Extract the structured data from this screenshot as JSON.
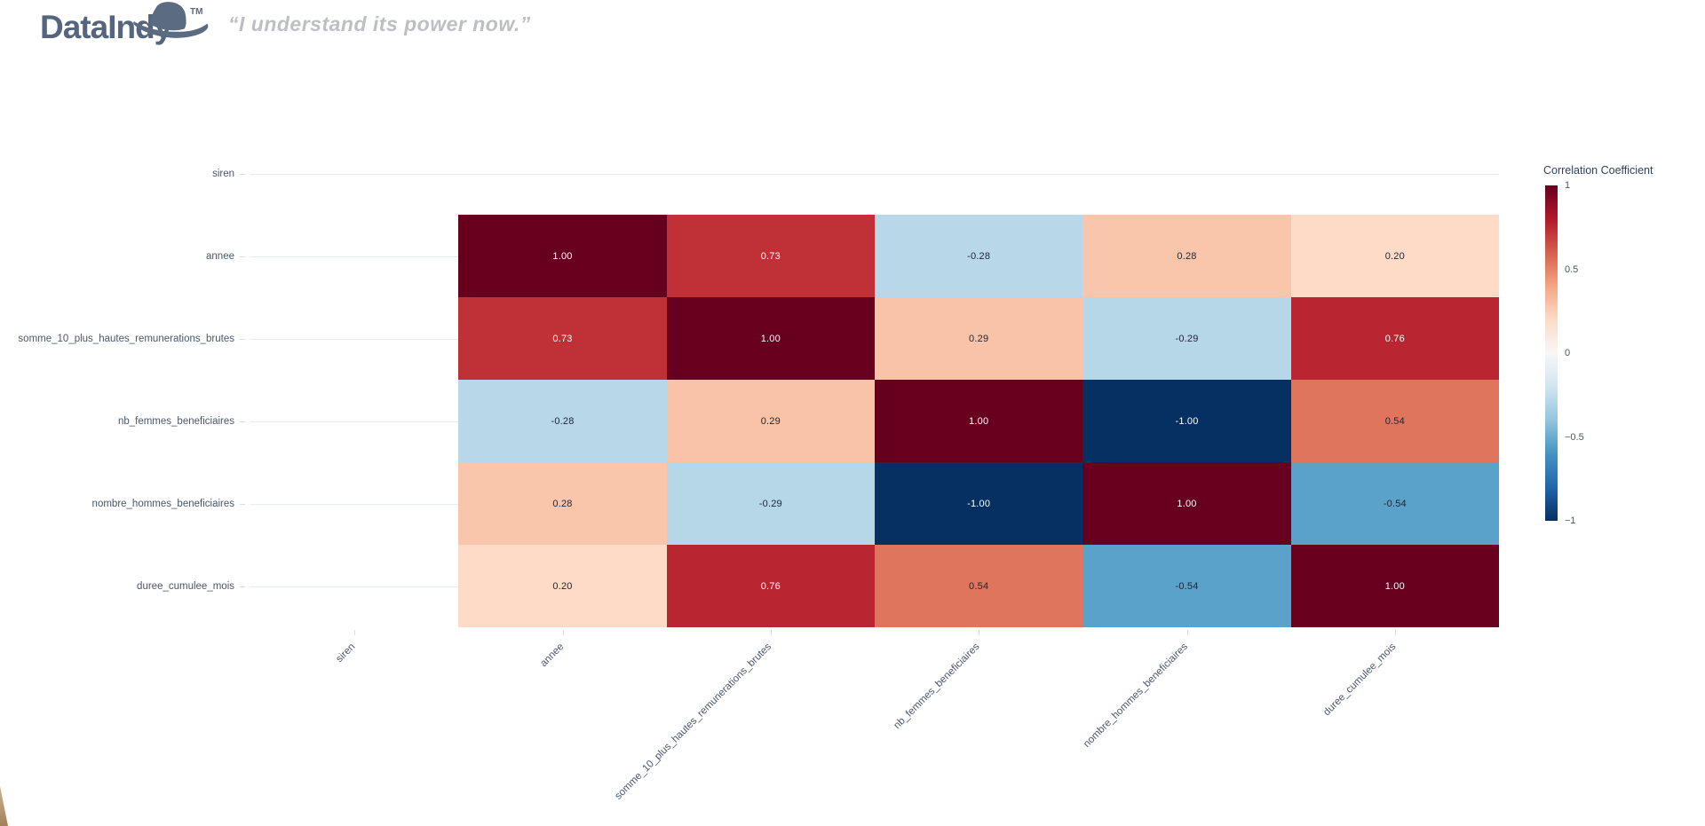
{
  "header": {
    "brand": "DataIndy",
    "trademark": "TM",
    "tagline": "“I understand its power now.”"
  },
  "colors": {
    "brand": "#55657f",
    "tagline": "#bdbfc3",
    "axis_label": "#4a566b",
    "gridline": "#e7ecf4",
    "cell_text_dark": "#1c2433",
    "cell_text_light": "#ffffff",
    "corner_wedge": "#a3815a"
  },
  "chart_data": {
    "type": "heatmap",
    "title": "",
    "labels": [
      "siren",
      "annee",
      "somme_10_plus_hautes_remunerations_brutes",
      "nb_femmes_beneficiaires",
      "nombre_hommes_beneficiaires",
      "duree_cumulee_mois"
    ],
    "matrix": [
      [
        null,
        null,
        null,
        null,
        null,
        null
      ],
      [
        null,
        1.0,
        0.73,
        -0.28,
        0.28,
        0.2
      ],
      [
        null,
        0.73,
        1.0,
        0.29,
        -0.29,
        0.76
      ],
      [
        null,
        -0.28,
        0.29,
        1.0,
        -1.0,
        0.54
      ],
      [
        null,
        0.28,
        -0.29,
        -1.0,
        1.0,
        -0.54
      ],
      [
        null,
        0.2,
        0.76,
        0.54,
        -0.54,
        1.0
      ]
    ],
    "zmin": -1,
    "zmax": 1,
    "grid": "horizontal-only",
    "xtick_rotation": -45,
    "colorscale_name": "RdBu_r",
    "colorscale_stops": [
      "#053061",
      "#2166ac",
      "#4393c3",
      "#92c5de",
      "#d1e5f0",
      "#f7f7f7",
      "#fddbc7",
      "#f4a582",
      "#d6604d",
      "#b2182b",
      "#67001f"
    ],
    "colorbar": {
      "title": "Correlation Coefficient",
      "ticks": [
        1,
        0.5,
        0,
        -0.5,
        -1
      ],
      "tick_labels": [
        "1",
        "0.5",
        "0",
        "−0.5",
        "−1"
      ],
      "position": "right"
    }
  }
}
